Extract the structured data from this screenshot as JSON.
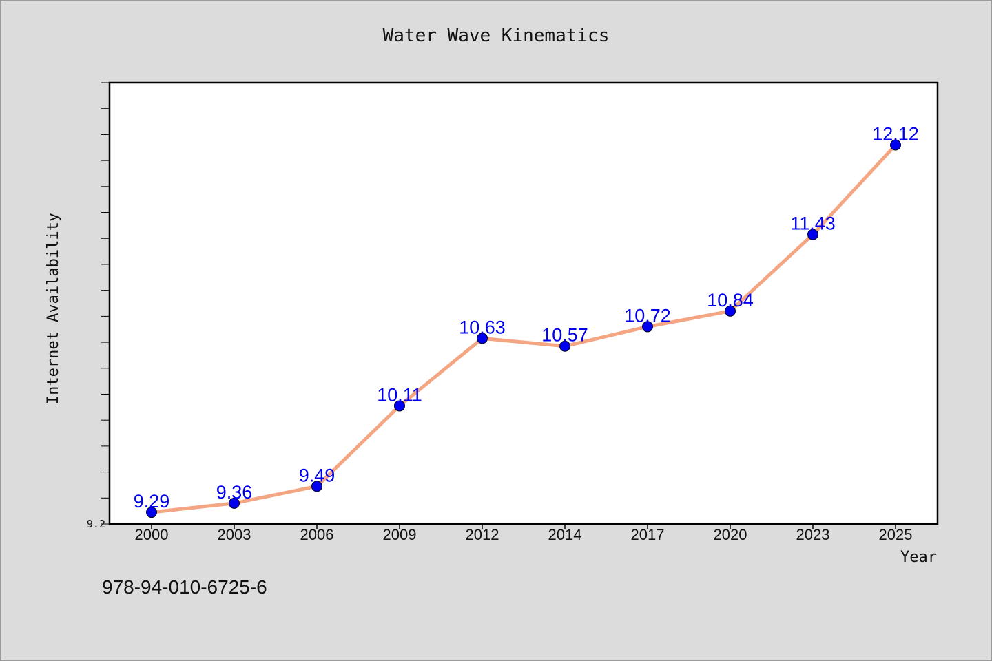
{
  "chart_data": {
    "type": "line",
    "title": "Water Wave Kinematics",
    "xlabel": "Year",
    "ylabel": "Internet Availability",
    "categories": [
      "2000",
      "2003",
      "2006",
      "2009",
      "2012",
      "2014",
      "2017",
      "2020",
      "2023",
      "2025"
    ],
    "values": [
      9.29,
      9.36,
      9.49,
      10.11,
      10.63,
      10.57,
      10.72,
      10.84,
      11.43,
      12.12
    ],
    "data_labels": [
      "9.29",
      "9.36",
      "9.49",
      "10.11",
      "10.63",
      "10.57",
      "10.72",
      "10.84",
      "11.43",
      "12.12"
    ],
    "yticks_labeled": [
      "9.2"
    ],
    "ylim": [
      9.2,
      12.6
    ],
    "grid": false,
    "colors": {
      "line": "#f4a582",
      "marker": "#0000ee",
      "label": "#0000ee"
    }
  },
  "footer_text": "978-94-010-6725-6"
}
